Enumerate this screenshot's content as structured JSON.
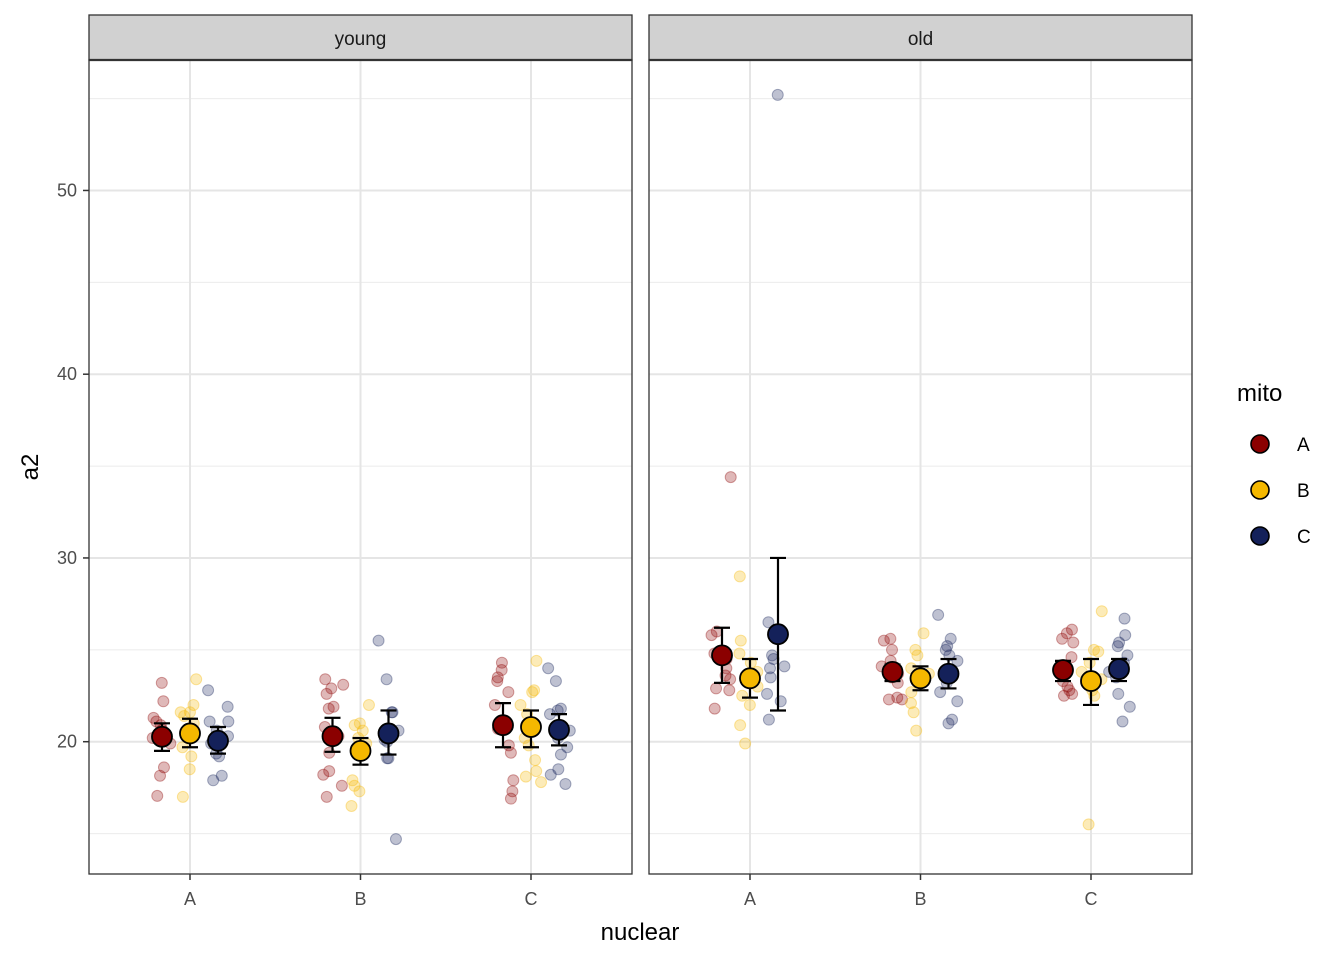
{
  "chart_data": {
    "type": "scatter",
    "subtype": "jittered points with mean and error bars, faceted",
    "title": "",
    "xlabel": "nuclear",
    "ylabel": "a2",
    "ylim": [
      12.8,
      57.1
    ],
    "yticks": [
      20,
      30,
      40,
      50
    ],
    "yminor": [
      15,
      25,
      35,
      45,
      55
    ],
    "categories": [
      "A",
      "B",
      "C"
    ],
    "grid": true,
    "facets": [
      "young",
      "old"
    ],
    "legend": {
      "title": "mito",
      "position": "right",
      "entries": [
        {
          "label": "A",
          "color": "#8B0000"
        },
        {
          "label": "B",
          "color": "#F5B800"
        },
        {
          "label": "C",
          "color": "#14215A"
        }
      ]
    },
    "panels": [
      {
        "facet": "young",
        "groups": [
          {
            "nuclear": "A",
            "mito": "A",
            "mean": 20.27,
            "lower": 19.5,
            "upper": 21.0,
            "points": [
              23.2,
              22.2,
              21.3,
              21.1,
              20.9,
              20.65,
              20.2,
              19.9,
              18.6,
              18.15,
              17.05
            ]
          },
          {
            "nuclear": "A",
            "mito": "B",
            "mean": 20.45,
            "lower": 19.7,
            "upper": 21.25,
            "points": [
              23.4,
              22.0,
              21.6,
              21.6,
              21.4,
              21.0,
              19.7,
              19.2,
              18.5,
              17.0
            ]
          },
          {
            "nuclear": "A",
            "mito": "C",
            "mean": 20.05,
            "lower": 19.35,
            "upper": 20.8,
            "points": [
              22.8,
              21.9,
              21.1,
              21.1,
              20.6,
              20.3,
              19.9,
              19.35,
              19.2,
              18.15,
              17.9
            ]
          },
          {
            "nuclear": "B",
            "mito": "A",
            "mean": 20.3,
            "lower": 19.45,
            "upper": 21.3,
            "points": [
              23.4,
              23.1,
              22.9,
              22.6,
              21.9,
              21.8,
              20.8,
              20.3,
              19.4,
              18.4,
              18.2,
              17.6,
              17.0
            ]
          },
          {
            "nuclear": "B",
            "mito": "B",
            "mean": 19.5,
            "lower": 18.75,
            "upper": 20.2,
            "points": [
              22.0,
              21.0,
              20.9,
              20.6,
              20.2,
              19.9,
              19.3,
              17.9,
              17.6,
              17.3,
              16.5
            ]
          },
          {
            "nuclear": "B",
            "mito": "C",
            "mean": 20.45,
            "lower": 19.3,
            "upper": 21.7,
            "points": [
              25.5,
              23.4,
              21.6,
              21.6,
              20.6,
              20.1,
              20.0,
              19.1,
              19.1,
              14.7
            ]
          },
          {
            "nuclear": "C",
            "mito": "A",
            "mean": 20.9,
            "lower": 19.7,
            "upper": 22.1,
            "points": [
              24.3,
              23.9,
              23.5,
              23.3,
              22.7,
              22.0,
              20.7,
              19.8,
              19.4,
              17.9,
              17.3,
              16.9
            ]
          },
          {
            "nuclear": "C",
            "mito": "B",
            "mean": 20.8,
            "lower": 19.7,
            "upper": 21.7,
            "points": [
              24.4,
              22.8,
              22.7,
              22.0,
              21.5,
              21.0,
              20.2,
              19.8,
              19.0,
              18.4,
              18.1,
              17.8
            ]
          },
          {
            "nuclear": "C",
            "mito": "C",
            "mean": 20.65,
            "lower": 19.8,
            "upper": 21.5,
            "points": [
              24.0,
              23.3,
              21.8,
              21.7,
              21.5,
              20.6,
              20.2,
              19.7,
              19.3,
              18.5,
              18.2,
              17.7
            ]
          }
        ]
      },
      {
        "facet": "old",
        "groups": [
          {
            "nuclear": "A",
            "mito": "A",
            "mean": 24.7,
            "lower": 23.2,
            "upper": 26.2,
            "points": [
              34.4,
              26.0,
              25.8,
              24.8,
              24.5,
              24.0,
              23.6,
              23.4,
              22.9,
              22.8,
              21.8
            ]
          },
          {
            "nuclear": "A",
            "mito": "B",
            "mean": 23.45,
            "lower": 22.4,
            "upper": 24.5,
            "points": [
              29.0,
              25.5,
              24.8,
              24.3,
              23.8,
              23.0,
              22.5,
              22.0,
              20.9,
              19.9
            ]
          },
          {
            "nuclear": "A",
            "mito": "C",
            "mean": 25.85,
            "lower": 21.7,
            "upper": 30.0,
            "points": [
              55.2,
              26.5,
              26.0,
              24.7,
              24.5,
              24.1,
              24.0,
              23.5,
              22.6,
              22.2,
              21.2
            ]
          },
          {
            "nuclear": "B",
            "mito": "A",
            "mean": 23.8,
            "lower": 23.3,
            "upper": 24.2,
            "points": [
              25.6,
              25.5,
              25.0,
              24.4,
              24.1,
              23.7,
              23.5,
              23.2,
              22.3,
              22.3,
              22.4
            ]
          },
          {
            "nuclear": "B",
            "mito": "B",
            "mean": 23.45,
            "lower": 22.8,
            "upper": 24.1,
            "points": [
              25.9,
              25.0,
              24.7,
              24.0,
              23.7,
              22.7,
              22.1,
              21.6,
              20.6
            ]
          },
          {
            "nuclear": "B",
            "mito": "C",
            "mean": 23.7,
            "lower": 22.9,
            "upper": 24.5,
            "points": [
              26.9,
              25.6,
              25.2,
              25.0,
              24.7,
              24.4,
              23.8,
              23.2,
              22.7,
              22.2,
              21.2,
              21.0
            ]
          },
          {
            "nuclear": "C",
            "mito": "A",
            "mean": 23.9,
            "lower": 23.3,
            "upper": 24.4,
            "points": [
              26.1,
              25.9,
              25.6,
              25.4,
              24.6,
              23.8,
              23.3,
              23.0,
              22.8,
              22.6,
              22.5
            ]
          },
          {
            "nuclear": "C",
            "mito": "B",
            "mean": 23.3,
            "lower": 22.0,
            "upper": 24.5,
            "points": [
              27.1,
              25.0,
              24.9,
              24.3,
              23.8,
              23.4,
              22.8,
              22.5,
              15.5
            ]
          },
          {
            "nuclear": "C",
            "mito": "C",
            "mean": 23.95,
            "lower": 23.3,
            "upper": 24.5,
            "points": [
              26.7,
              25.8,
              25.4,
              25.2,
              24.7,
              24.3,
              23.8,
              23.5,
              22.6,
              21.9,
              21.1
            ]
          }
        ]
      }
    ]
  }
}
